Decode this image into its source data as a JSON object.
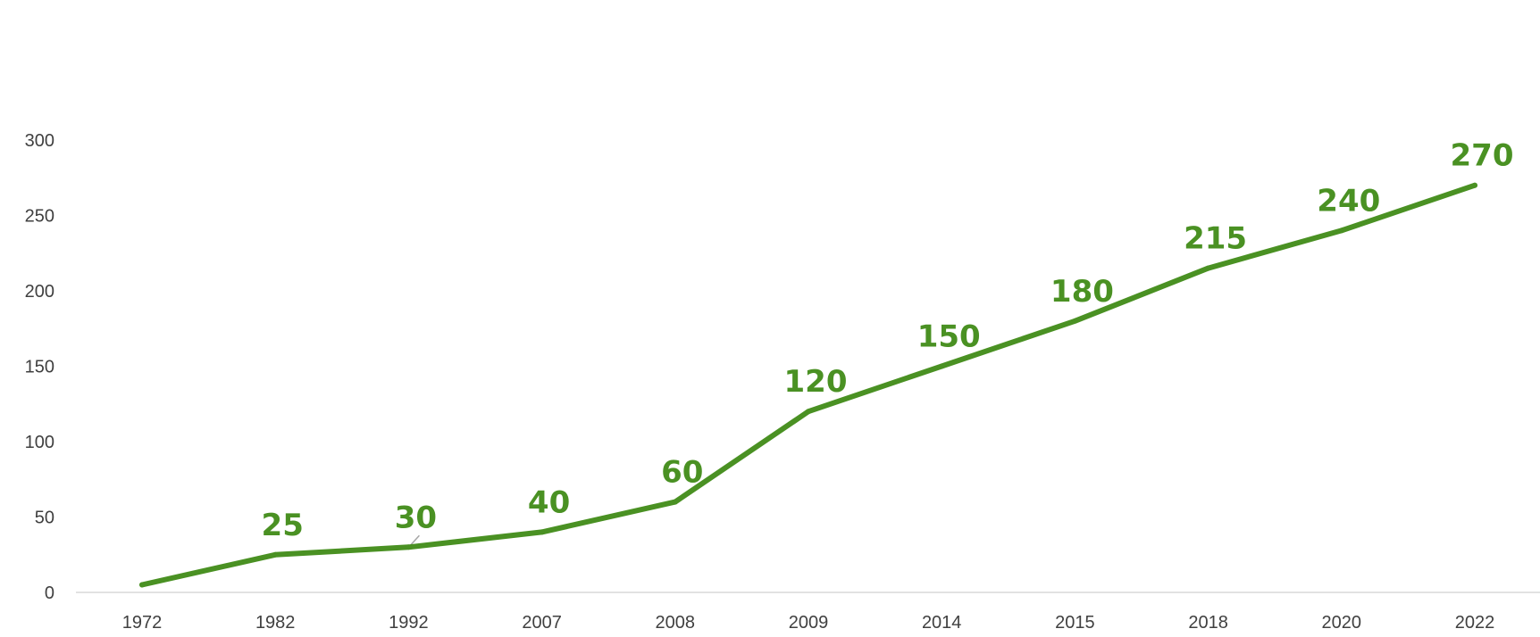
{
  "colors": {
    "series": "#4a9123",
    "axis": "#d9d9d9",
    "tick_text": "#404040",
    "leader": "#a6a6a6"
  },
  "chart_data": {
    "type": "line",
    "title": "",
    "xlabel": "",
    "ylabel": "",
    "categories": [
      "1972",
      "1982",
      "1992",
      "2007",
      "2008",
      "2009",
      "2014",
      "2015",
      "2018",
      "2020",
      "2022"
    ],
    "series": [
      {
        "values": [
          5,
          25,
          30,
          40,
          60,
          120,
          150,
          180,
          215,
          240,
          270
        ],
        "data_labels": [
          "",
          "25",
          "30",
          "40",
          "60",
          "120",
          "150",
          "180",
          "215",
          "240",
          "270"
        ]
      }
    ],
    "ylim": [
      0,
      300
    ],
    "yticks": [
      "0",
      "50",
      "100",
      "150",
      "200",
      "250",
      "300"
    ],
    "grid": false,
    "legend": "none"
  }
}
